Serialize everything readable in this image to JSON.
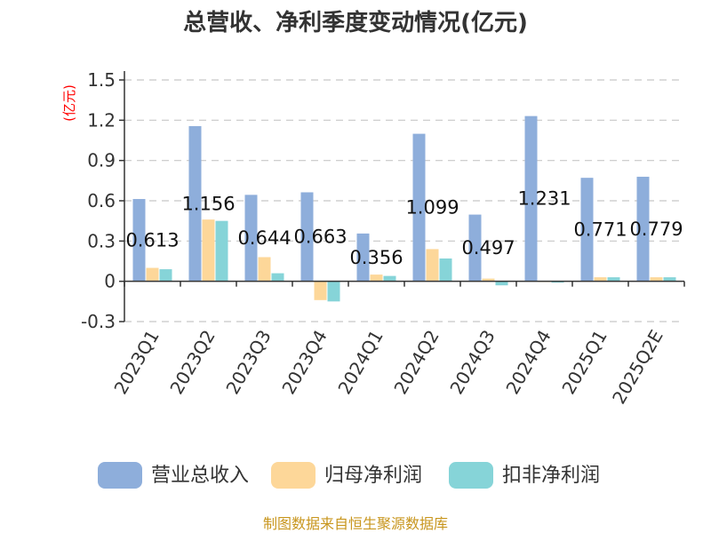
{
  "title": "总营收、净利季度变动情况(亿元)",
  "source": "制图数据来自恒生聚源数据库",
  "chart_data": {
    "type": "bar",
    "unit": "(亿元)",
    "categories": [
      "2023Q1",
      "2023Q2",
      "2023Q3",
      "2023Q4",
      "2024Q1",
      "2024Q2",
      "2024Q3",
      "2024Q4",
      "2025Q1",
      "2025Q2E"
    ],
    "series": [
      {
        "name": "营业总收入",
        "color": "#8eaedb",
        "values": [
          0.613,
          1.156,
          0.644,
          0.663,
          0.356,
          1.099,
          0.497,
          1.231,
          0.771,
          0.779
        ],
        "labels": [
          "0.613",
          "1.156",
          "0.644",
          "0.663",
          "0.356",
          "1.099",
          "0.497",
          "1.231",
          "0.771",
          "0.779"
        ]
      },
      {
        "name": "归母净利润",
        "color": "#fdd799",
        "values": [
          0.1,
          0.46,
          0.18,
          -0.14,
          0.05,
          0.24,
          0.02,
          0.0,
          0.03,
          0.03
        ]
      },
      {
        "name": "扣非净利润",
        "color": "#86d4d8",
        "values": [
          0.09,
          0.45,
          0.06,
          -0.15,
          0.04,
          0.17,
          -0.03,
          -0.01,
          0.03,
          0.03
        ]
      }
    ],
    "yticks": [
      "1.5",
      "1.2",
      "0.9",
      "0.6",
      "0.3",
      "0",
      "-0.3"
    ],
    "ytick_values": [
      1.5,
      1.2,
      0.9,
      0.6,
      0.3,
      0,
      -0.3
    ],
    "ylim": [
      -0.3,
      1.5
    ],
    "grid": true,
    "legend_position": "bottom"
  }
}
